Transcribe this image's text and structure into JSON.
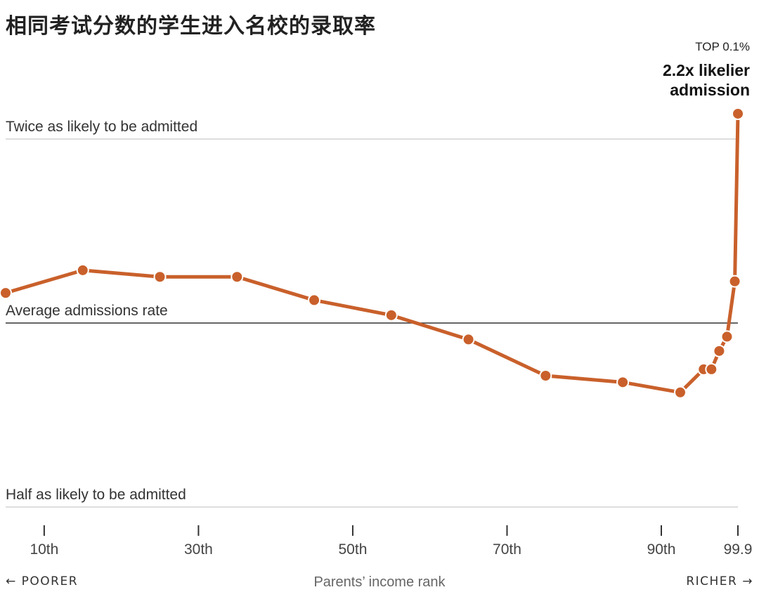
{
  "title": "相同考试分数的学生进入名校的录取率",
  "annotation": {
    "small": "TOP 0.1%",
    "big_line1": "2.2x likelier",
    "big_line2": "admission"
  },
  "footer": {
    "left": "← POORER",
    "center": "Parents’ income rank",
    "right": "RICHER →"
  },
  "colors": {
    "series": "#c9602b",
    "reference_avg": "#333333",
    "reference_other": "#dddddd"
  },
  "chart_data": {
    "type": "line",
    "title": "相同考试分数的学生进入名校的录取率",
    "xlabel": "Parents’ income rank",
    "ylabel": "",
    "x_ticks": [
      {
        "x": 10,
        "label": "10th"
      },
      {
        "x": 30,
        "label": "30th"
      },
      {
        "x": 50,
        "label": "50th"
      },
      {
        "x": 70,
        "label": "70th"
      },
      {
        "x": 90,
        "label": "90th"
      },
      {
        "x": 99.9,
        "label": "99.9"
      }
    ],
    "xlim": [
      5,
      100
    ],
    "y_scale": "log2",
    "ylim": [
      0.5,
      2.2
    ],
    "reference_lines": [
      {
        "y": 2.0,
        "label": "Twice as likely to be admitted"
      },
      {
        "y": 1.0,
        "label": "Average admissions rate"
      },
      {
        "y": 0.5,
        "label": "Half as likely to be admitted"
      }
    ],
    "grid": false,
    "legend": "none",
    "series": [
      {
        "x": [
          5,
          15,
          25,
          35,
          45,
          55,
          65,
          75,
          85,
          92.5,
          95.5,
          96.5,
          97.5,
          98.5,
          99.5,
          99.9
        ],
        "y": [
          1.12,
          1.22,
          1.19,
          1.19,
          1.09,
          1.03,
          0.94,
          0.82,
          0.8,
          0.77,
          0.84,
          0.84,
          0.9,
          0.95,
          1.17,
          2.2
        ]
      }
    ],
    "annotations": [
      {
        "x": 99.9,
        "y": 2.2,
        "text": "TOP 0.1% 2.2x likelier admission"
      }
    ]
  }
}
